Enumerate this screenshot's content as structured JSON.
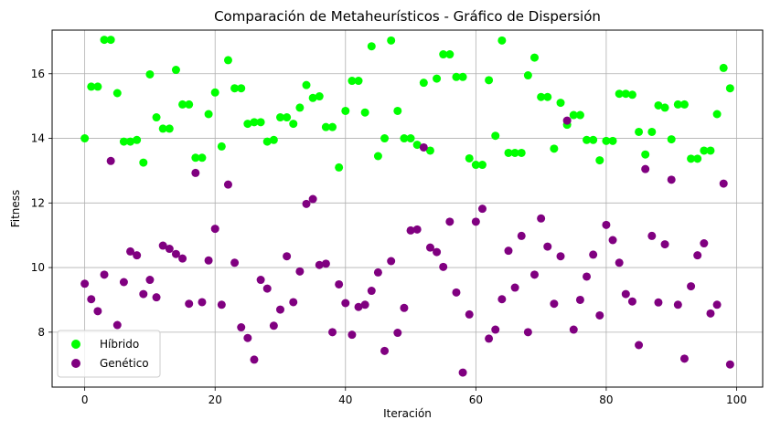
{
  "chart_data": {
    "type": "scatter",
    "title": "Comparación de Metaheurísticos - Gráfico de Dispersión",
    "xlabel": "Iteración",
    "ylabel": "Fitness",
    "xlim": [
      -5,
      104
    ],
    "ylim": [
      6.3,
      17.35
    ],
    "xticks": [
      0,
      20,
      40,
      60,
      80,
      100
    ],
    "yticks": [
      8,
      10,
      12,
      14,
      16
    ],
    "grid": true,
    "legend_position": "bottom-left",
    "x": [
      0,
      1,
      2,
      3,
      4,
      5,
      6,
      7,
      8,
      9,
      10,
      11,
      12,
      13,
      14,
      15,
      16,
      17,
      18,
      19,
      20,
      21,
      22,
      23,
      24,
      25,
      26,
      27,
      28,
      29,
      30,
      31,
      32,
      33,
      34,
      35,
      36,
      37,
      38,
      39,
      40,
      41,
      42,
      43,
      44,
      45,
      46,
      47,
      48,
      49,
      50,
      51,
      52,
      53,
      54,
      55,
      56,
      57,
      58,
      59,
      60,
      61,
      62,
      63,
      64,
      65,
      66,
      67,
      68,
      69,
      70,
      71,
      72,
      73,
      74,
      75,
      76,
      77,
      78,
      79,
      80,
      81,
      82,
      83,
      84,
      85,
      86,
      87,
      88,
      89,
      90,
      91,
      92,
      93,
      94,
      95,
      96,
      97,
      98,
      99
    ],
    "series": [
      {
        "name": "Híbrido",
        "color": "#00ff00",
        "values": [
          14.0,
          15.6,
          15.6,
          17.05,
          17.05,
          15.4,
          13.9,
          13.9,
          13.95,
          13.25,
          15.98,
          14.65,
          14.3,
          14.3,
          16.12,
          15.05,
          15.05,
          13.4,
          13.4,
          14.75,
          15.42,
          13.75,
          16.42,
          15.55,
          15.55,
          14.45,
          14.5,
          14.5,
          13.9,
          13.95,
          14.65,
          14.65,
          14.45,
          14.95,
          15.65,
          15.25,
          15.3,
          14.35,
          14.35,
          13.1,
          14.85,
          15.78,
          15.78,
          14.8,
          16.85,
          13.45,
          14.0,
          17.03,
          14.85,
          14.0,
          14.0,
          13.8,
          15.72,
          13.62,
          15.85,
          16.6,
          16.6,
          15.9,
          15.9,
          13.38,
          13.18,
          13.18,
          15.8,
          14.08,
          17.03,
          13.55,
          13.55,
          13.55,
          15.95,
          16.5,
          15.28,
          15.28,
          13.68,
          15.1,
          14.42,
          14.72,
          14.72,
          13.95,
          13.95,
          13.32,
          13.92,
          13.92,
          15.38,
          15.38,
          15.35,
          14.2,
          13.5,
          14.2,
          15.02,
          14.95,
          13.97,
          15.05,
          15.05,
          13.37,
          13.37,
          13.62,
          13.62,
          14.75,
          16.18,
          15.55
        ]
      },
      {
        "name": "Genético",
        "color": "#800080",
        "values": [
          9.5,
          9.02,
          8.65,
          9.78,
          13.3,
          8.22,
          9.55,
          10.5,
          10.38,
          9.18,
          9.62,
          9.08,
          10.68,
          10.58,
          10.42,
          10.28,
          8.88,
          12.93,
          8.93,
          10.22,
          11.2,
          8.85,
          12.57,
          10.15,
          8.15,
          7.82,
          7.15,
          9.62,
          9.35,
          8.2,
          8.7,
          10.35,
          8.93,
          9.88,
          11.97,
          12.12,
          10.08,
          10.12,
          8.0,
          9.48,
          8.9,
          7.92,
          8.78,
          8.85,
          9.28,
          9.85,
          7.42,
          10.2,
          7.98,
          8.75,
          11.15,
          11.18,
          13.72,
          10.62,
          10.48,
          10.02,
          11.42,
          9.23,
          6.75,
          8.55,
          11.42,
          11.82,
          7.8,
          8.08,
          9.02,
          10.52,
          9.38,
          10.98,
          8.0,
          9.78,
          11.52,
          10.65,
          8.88,
          10.35,
          14.55,
          8.08,
          9.0,
          9.72,
          10.4,
          8.52,
          11.32,
          10.85,
          10.15,
          9.18,
          8.95,
          7.6,
          13.05,
          10.98,
          8.92,
          10.72,
          12.72,
          8.85,
          7.18,
          9.42,
          10.38,
          10.75,
          8.58,
          8.85,
          12.6,
          7.0
        ]
      }
    ]
  }
}
